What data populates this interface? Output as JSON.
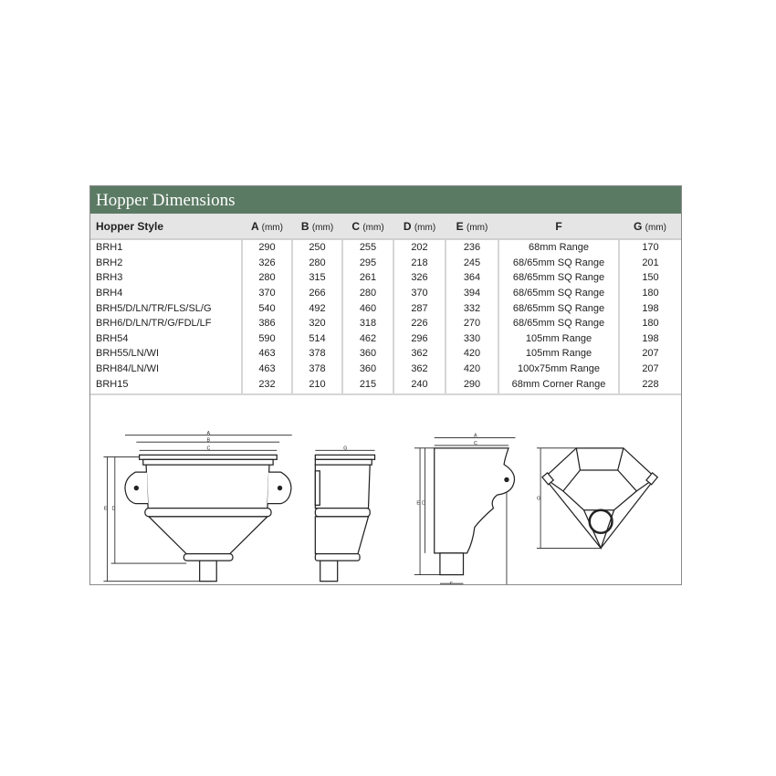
{
  "title": "Hopper Dimensions",
  "columns": [
    {
      "label": "Hopper Style",
      "unit": ""
    },
    {
      "label": "A",
      "unit": "(mm)"
    },
    {
      "label": "B",
      "unit": "(mm)"
    },
    {
      "label": "C",
      "unit": "(mm)"
    },
    {
      "label": "D",
      "unit": "(mm)"
    },
    {
      "label": "E",
      "unit": "(mm)"
    },
    {
      "label": "F",
      "unit": ""
    },
    {
      "label": "G",
      "unit": "(mm)"
    }
  ],
  "rows": [
    [
      "BRH1",
      "290",
      "250",
      "255",
      "202",
      "236",
      "68mm Range",
      "170"
    ],
    [
      "BRH2",
      "326",
      "280",
      "295",
      "218",
      "245",
      "68/65mm SQ Range",
      "201"
    ],
    [
      "BRH3",
      "280",
      "315",
      "261",
      "326",
      "364",
      "68/65mm SQ Range",
      "150"
    ],
    [
      "BRH4",
      "370",
      "266",
      "280",
      "370",
      "394",
      "68/65mm SQ Range",
      "180"
    ],
    [
      "BRH5/D/LN/TR/FLS/SL/G",
      "540",
      "492",
      "460",
      "287",
      "332",
      "68/65mm SQ Range",
      "198"
    ],
    [
      "BRH6/D/LN/TR/G/FDL/LF",
      "386",
      "320",
      "318",
      "226",
      "270",
      "68/65mm SQ Range",
      "180"
    ],
    [
      "BRH54",
      "590",
      "514",
      "462",
      "296",
      "330",
      "105mm Range",
      "198"
    ],
    [
      "BRH55/LN/WI",
      "463",
      "378",
      "360",
      "362",
      "420",
      "105mm Range",
      "207"
    ],
    [
      "BRH84/LN/WI",
      "463",
      "378",
      "360",
      "362",
      "420",
      "100x75mm Range",
      "207"
    ],
    [
      "BRH15",
      "232",
      "210",
      "215",
      "240",
      "290",
      "68mm Corner Range",
      "228"
    ]
  ],
  "diagram_labels": {
    "a": "A",
    "b": "B",
    "c": "C",
    "d": "D",
    "e": "E",
    "f": "F",
    "g": "G"
  },
  "colors": {
    "title_bar": "#5b7a64",
    "header_row": "#e4e5e4",
    "divider": "#d5d6d5"
  }
}
